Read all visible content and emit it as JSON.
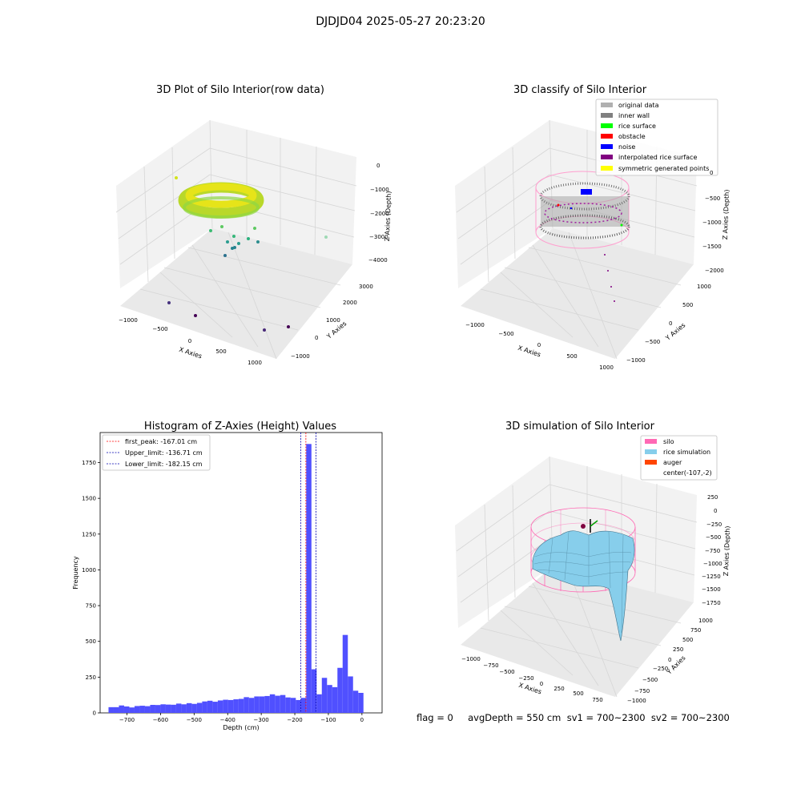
{
  "figure": {
    "suptitle": "DJDJD04 2025-05-27 20:23:20",
    "status_line": "flag = 0     avgDepth = 550 cm  sv1 = 700~2300  sv2 = 700~2300"
  },
  "colors": {
    "histogram_bars": "#5050ff",
    "first_peak": "#ff0000",
    "limits": "#0000b0",
    "silo_wire": "#ff69b4",
    "rice_simulation": "#87ceeb",
    "auger": "#ff4500",
    "original_data": "#b0b0b0",
    "inner_wall": "#808080",
    "rice_surface": "#00ff00",
    "obstacle": "#ff0000",
    "noise": "#0000ff",
    "interpolated_rice_surface": "#800080",
    "symmetric_generated_points": "#ffff00",
    "pane": "#f2f2f2",
    "grid": "#d6d6d6"
  },
  "chart_data": [
    {
      "type": "scatter",
      "projection": "3d",
      "title": "3D Plot of Silo Interior(row data)",
      "xlabel": "X Axies",
      "ylabel": "Y Axies",
      "zlabel": "Z Axies (Depth)",
      "x_ticks": [
        "−1000",
        "−500",
        "0",
        "500",
        "1000"
      ],
      "y_ticks": [
        "−1000",
        "0",
        "1000",
        "2000",
        "3000"
      ],
      "z_ticks": [
        "0",
        "−1000",
        "−2000",
        "−3000",
        "−4000"
      ],
      "grid": true,
      "colormap": "viridis"
    },
    {
      "type": "scatter",
      "projection": "3d",
      "title": "3D classify of Silo Interior",
      "xlabel": "X Axies",
      "ylabel": "Y Axies",
      "zlabel": "Z Axies (Depth)",
      "x_ticks": [
        "−1000",
        "−500",
        "0",
        "500",
        "1000"
      ],
      "y_ticks": [
        "−1000",
        "−500",
        "0",
        "500",
        "1000"
      ],
      "z_ticks": [
        "0",
        "−500",
        "−1000",
        "−1500",
        "−2000"
      ],
      "legend_position": "top-right",
      "legend": [
        {
          "label": "original data",
          "color": "#b0b0b0"
        },
        {
          "label": "inner wall",
          "color": "#808080"
        },
        {
          "label": "rice surface",
          "color": "#00ff00"
        },
        {
          "label": "obstacle",
          "color": "#ff0000"
        },
        {
          "label": "noise",
          "color": "#0000ff"
        },
        {
          "label": "interpolated rice surface",
          "color": "#800080"
        },
        {
          "label": "symmetric generated points",
          "color": "#ffff00"
        }
      ]
    },
    {
      "type": "bar",
      "title": "Histogram of Z-Axies (Height) Values",
      "xlabel": "Depth (cm)",
      "ylabel": "Frequency",
      "xlim": [
        -780,
        60
      ],
      "ylim": [
        0,
        1960
      ],
      "x_ticks": [
        -700,
        -600,
        -500,
        -400,
        -300,
        -200,
        -100,
        0
      ],
      "x_tick_labels": [
        "−700",
        "−600",
        "−500",
        "−400",
        "−300",
        "−200",
        "−100",
        "0"
      ],
      "y_ticks": [
        0,
        250,
        500,
        750,
        1000,
        1250,
        1500,
        1750
      ],
      "y_tick_labels": [
        "0",
        "250",
        "500",
        "750",
        "1000",
        "1250",
        "1500",
        "1750"
      ],
      "bin_start": -755,
      "bin_width": 15.5,
      "values": [
        40,
        40,
        52,
        45,
        38,
        48,
        50,
        47,
        56,
        55,
        60,
        58,
        57,
        65,
        60,
        68,
        63,
        70,
        80,
        85,
        78,
        87,
        92,
        90,
        95,
        98,
        110,
        105,
        115,
        115,
        118,
        130,
        120,
        125,
        108,
        105,
        90,
        105,
        1880,
        305,
        130,
        245,
        195,
        180,
        315,
        545,
        255,
        155,
        140
      ],
      "lines": [
        {
          "label": "first_peak: -167.01 cm",
          "value": -167.01,
          "color": "#ff0000",
          "style": "dashed"
        },
        {
          "label": "Upper_limit: -136.71 cm",
          "value": -136.71,
          "color": "#0000b0",
          "style": "dashed"
        },
        {
          "label": "Lower_limit: -182.15 cm",
          "value": -182.15,
          "color": "#0000b0",
          "style": "dashed"
        }
      ],
      "legend_position": "top-left",
      "grid": false
    },
    {
      "type": "surface",
      "projection": "3d",
      "title": "3D simulation of Silo Interior",
      "xlabel": "X Axies",
      "ylabel": "Y Axies",
      "zlabel": "Z Axies (Depth)",
      "x_ticks": [
        "−1000",
        "−750",
        "−500",
        "−250",
        "0",
        "250",
        "500",
        "750"
      ],
      "y_ticks": [
        "−1000",
        "−750",
        "−500",
        "−250",
        "0",
        "250",
        "500",
        "750",
        "1000"
      ],
      "z_ticks": [
        "250",
        "0",
        "−250",
        "−500",
        "−750",
        "−1000",
        "−1250",
        "−1500",
        "−1750"
      ],
      "legend_position": "top-right",
      "legend": [
        {
          "label": "silo",
          "color": "#ff69b4"
        },
        {
          "label": "rice simulation",
          "color": "#87ceeb"
        },
        {
          "label": "auger",
          "color": "#ff4500"
        },
        {
          "label": "center(-107,-2)",
          "color": ""
        }
      ]
    }
  ]
}
